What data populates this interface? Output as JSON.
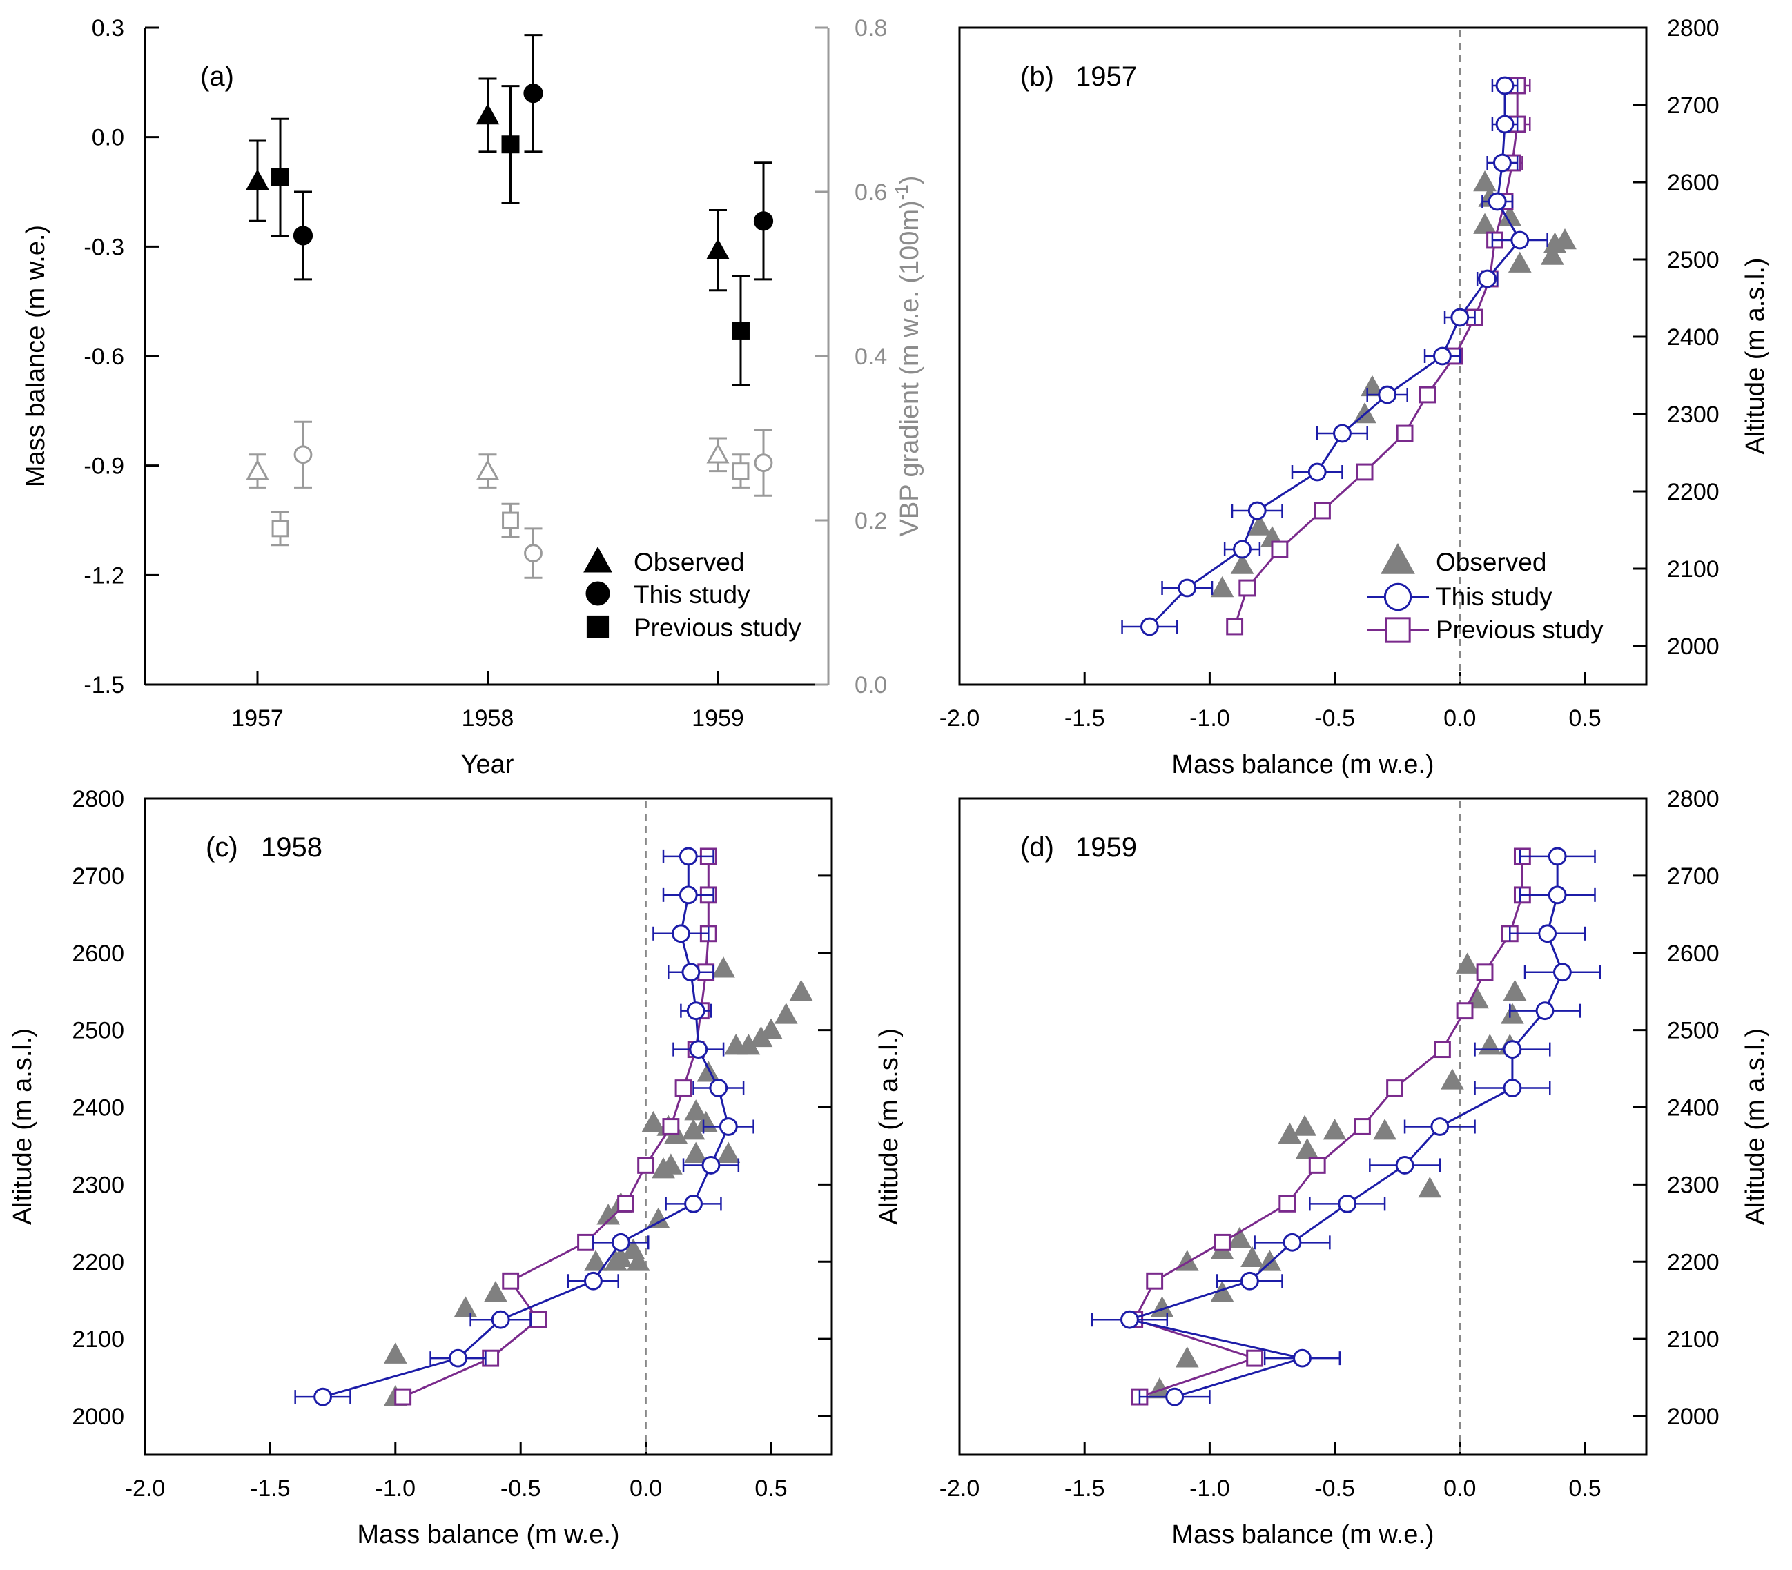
{
  "chart_data": [
    {
      "type": "scatter",
      "panel_label": "(a)",
      "xlabel": "Year",
      "ylabel": "Mass balance (m w.e.)",
      "y2label": "VBP gradient (m w.e. (100m)",
      "y2label_sup": "-1",
      "y2label_close": ")",
      "x_ticks": [
        "1957",
        "1958",
        "1959"
      ],
      "y_ticks": [
        "0.3",
        "0.0",
        "-0.3",
        "-0.6",
        "-0.9",
        "-1.2",
        "-1.5"
      ],
      "y2_ticks": [
        "0.8",
        "0.6",
        "0.4",
        "0.2",
        "0.0"
      ],
      "ylim": [
        -1.5,
        0.3
      ],
      "y2lim": [
        0.0,
        0.8
      ],
      "legend": [
        "Observed",
        "This study",
        "Previous study"
      ],
      "colors": {
        "mass_balance": "#000000",
        "gradient": "#9a9a9a"
      },
      "series": [
        {
          "name": "Observed",
          "marker": "triangle",
          "axis": "mass_balance",
          "years": [
            1957,
            1958,
            1959
          ],
          "values": [
            -0.12,
            0.06,
            -0.31
          ],
          "err": [
            0.11,
            0.1,
            0.11
          ]
        },
        {
          "name": "Previous study",
          "marker": "square",
          "axis": "mass_balance",
          "years": [
            1957,
            1958,
            1959
          ],
          "values": [
            -0.11,
            -0.02,
            -0.53
          ],
          "err": [
            0.16,
            0.16,
            0.15
          ]
        },
        {
          "name": "This study",
          "marker": "circle",
          "axis": "mass_balance",
          "years": [
            1957,
            1958,
            1959
          ],
          "values": [
            -0.27,
            0.12,
            -0.23
          ],
          "err": [
            0.12,
            0.16,
            0.16
          ]
        },
        {
          "name": "Observed gradient",
          "marker": "triangle-open",
          "axis": "gradient",
          "years": [
            1957,
            1958,
            1959
          ],
          "values": [
            0.26,
            0.26,
            0.28
          ],
          "err": [
            0.02,
            0.02,
            0.02
          ]
        },
        {
          "name": "Previous study gradient",
          "marker": "square-open",
          "axis": "gradient",
          "years": [
            1957,
            1958,
            1959
          ],
          "values": [
            0.19,
            0.2,
            0.26
          ],
          "err": [
            0.02,
            0.02,
            0.02
          ]
        },
        {
          "name": "This study gradient",
          "marker": "circle-open",
          "axis": "gradient",
          "years": [
            1957,
            1958,
            1959
          ],
          "values": [
            0.28,
            0.16,
            0.27
          ],
          "err": [
            0.04,
            0.03,
            0.04
          ]
        }
      ]
    },
    {
      "type": "line",
      "panel_label": "(b)",
      "year_label": "1957",
      "xlabel": "Mass balance (m w.e.)",
      "ylabel": "Altitude (m a.s.l.)",
      "ylabel_side": "right",
      "xlim": [
        -2.0,
        0.75
      ],
      "ylim": [
        1950,
        2800
      ],
      "x_ticks": [
        "-2.0",
        "-1.5",
        "-1.0",
        "-0.5",
        "0.0",
        "0.5"
      ],
      "y_ticks": [
        "2000",
        "2100",
        "2200",
        "2300",
        "2400",
        "2500",
        "2600",
        "2700",
        "2800"
      ],
      "legend": [
        "Observed",
        "This study",
        "Previous study"
      ],
      "colors": {
        "observed": "#808080",
        "this_study": "#1c1ca8",
        "previous_study": "#7a2a8c"
      },
      "observed": {
        "x": [
          0.1,
          0.12,
          0.2,
          0.1,
          0.24,
          0.37,
          0.42,
          0.38,
          -0.35,
          -0.38,
          -0.8,
          -0.75,
          -0.87,
          -0.95
        ],
        "y": [
          2600,
          2580,
          2555,
          2545,
          2495,
          2505,
          2525,
          2520,
          2335,
          2300,
          2155,
          2140,
          2105,
          2075
        ]
      },
      "this_study": {
        "x": [
          0.18,
          0.18,
          0.17,
          0.15,
          0.24,
          0.11,
          0.0,
          -0.07,
          -0.29,
          -0.47,
          -0.57,
          -0.81,
          -0.87,
          -1.09,
          -1.24
        ],
        "y": [
          2725,
          2675,
          2625,
          2575,
          2525,
          2475,
          2425,
          2375,
          2325,
          2275,
          2225,
          2175,
          2125,
          2075,
          2025
        ],
        "err": [
          0.05,
          0.05,
          0.06,
          0.06,
          0.11,
          0.04,
          0.06,
          0.07,
          0.08,
          0.1,
          0.1,
          0.1,
          0.07,
          0.1,
          0.11
        ]
      },
      "previous_study": {
        "x": [
          0.23,
          0.23,
          0.21,
          0.18,
          0.14,
          0.12,
          0.06,
          -0.02,
          -0.13,
          -0.22,
          -0.38,
          -0.55,
          -0.72,
          -0.85,
          -0.9
        ],
        "y": [
          2725,
          2675,
          2625,
          2575,
          2525,
          2475,
          2425,
          2375,
          2325,
          2275,
          2225,
          2175,
          2125,
          2075,
          2025
        ],
        "err": [
          0.05,
          0.05,
          0.04,
          0.03,
          0.02,
          0.02,
          0.02,
          0.02,
          0,
          0,
          0,
          0,
          0,
          0,
          0
        ]
      }
    },
    {
      "type": "line",
      "panel_label": "(c)",
      "year_label": "1958",
      "xlabel": "Mass balance (m w.e.)",
      "ylabel": "Altitude (m a.s.l.)",
      "ylabel_side": "left",
      "xlim": [
        -2.0,
        0.75
      ],
      "ylim": [
        1950,
        2800
      ],
      "x_ticks": [
        "-2.0",
        "-1.5",
        "-1.0",
        "-0.5",
        "0.0",
        "0.5"
      ],
      "y_ticks": [
        "2000",
        "2100",
        "2200",
        "2300",
        "2400",
        "2500",
        "2600",
        "2700",
        "2800"
      ],
      "colors": {
        "observed": "#808080",
        "this_study": "#1c1ca8",
        "previous_study": "#7a2a8c"
      },
      "observed": {
        "x": [
          0.31,
          0.62,
          0.56,
          0.5,
          0.46,
          0.41,
          0.36,
          0.25,
          0.03,
          0.09,
          0.2,
          0.24,
          0.19,
          0.12,
          0.33,
          0.2,
          0.07,
          0.1,
          -0.15,
          -0.1,
          0.05,
          -0.05,
          -0.12,
          -0.2,
          -0.03,
          -0.1,
          -0.6,
          -0.72,
          -1.0,
          -1.0
        ],
        "y": [
          2580,
          2550,
          2520,
          2500,
          2490,
          2480,
          2480,
          2445,
          2380,
          2375,
          2395,
          2380,
          2370,
          2365,
          2340,
          2340,
          2320,
          2325,
          2260,
          2275,
          2255,
          2215,
          2200,
          2200,
          2200,
          2205,
          2160,
          2140,
          2080,
          2025
        ]
      },
      "this_study": {
        "x": [
          0.17,
          0.17,
          0.14,
          0.18,
          0.2,
          0.21,
          0.29,
          0.33,
          0.26,
          0.19,
          -0.1,
          -0.21,
          -0.58,
          -0.75,
          -1.29
        ],
        "y": [
          2725,
          2675,
          2625,
          2575,
          2525,
          2475,
          2425,
          2375,
          2325,
          2275,
          2225,
          2175,
          2125,
          2075,
          2025
        ],
        "err": [
          0.1,
          0.1,
          0.11,
          0.09,
          0.06,
          0.1,
          0.1,
          0.1,
          0.11,
          0.11,
          0.11,
          0.1,
          0.12,
          0.11,
          0.11
        ]
      },
      "previous_study": {
        "x": [
          0.25,
          0.25,
          0.25,
          0.24,
          0.22,
          0.2,
          0.15,
          0.1,
          0.0,
          -0.08,
          -0.24,
          -0.54,
          -0.43,
          -0.62,
          -0.97
        ],
        "y": [
          2725,
          2675,
          2625,
          2575,
          2525,
          2475,
          2425,
          2375,
          2325,
          2275,
          2225,
          2175,
          2125,
          2075,
          2025
        ],
        "err": [
          0.02,
          0.02,
          0.02,
          0.02,
          0.02,
          0.02,
          0,
          0,
          0,
          0,
          0,
          0,
          0,
          0,
          0
        ]
      }
    },
    {
      "type": "line",
      "panel_label": "(d)",
      "year_label": "1959",
      "xlabel": "Mass balance (m w.e.)",
      "ylabel": "Altitude (m a.s.l.)",
      "ylabel_side": "both",
      "xlim": [
        -2.0,
        0.75
      ],
      "ylim": [
        1950,
        2800
      ],
      "x_ticks": [
        "-2.0",
        "-1.5",
        "-1.0",
        "-0.5",
        "0.0",
        "0.5"
      ],
      "y_ticks": [
        "2000",
        "2100",
        "2200",
        "2300",
        "2400",
        "2500",
        "2600",
        "2700",
        "2800"
      ],
      "colors": {
        "observed": "#808080",
        "this_study": "#1c1ca8",
        "previous_study": "#7a2a8c"
      },
      "observed": {
        "x": [
          0.03,
          0.22,
          0.07,
          0.21,
          0.12,
          0.2,
          -0.03,
          -0.68,
          -0.62,
          -0.5,
          -0.61,
          -0.3,
          -0.12,
          -0.88,
          -0.95,
          -0.83,
          -0.76,
          -1.09,
          -0.95,
          -1.19,
          -1.09,
          -1.2
        ],
        "y": [
          2585,
          2550,
          2540,
          2520,
          2480,
          2480,
          2435,
          2365,
          2375,
          2370,
          2345,
          2370,
          2295,
          2230,
          2215,
          2205,
          2200,
          2200,
          2160,
          2140,
          2075,
          2035
        ]
      },
      "this_study": {
        "x": [
          0.39,
          0.39,
          0.35,
          0.41,
          0.34,
          0.21,
          0.21,
          -0.08,
          -0.22,
          -0.45,
          -0.67,
          -0.84,
          -1.32,
          -0.63,
          -1.14
        ],
        "y": [
          2725,
          2675,
          2625,
          2575,
          2525,
          2475,
          2425,
          2375,
          2325,
          2275,
          2225,
          2175,
          2125,
          2075,
          2025
        ],
        "err": [
          0.15,
          0.15,
          0.15,
          0.15,
          0.14,
          0.15,
          0.15,
          0.14,
          0.14,
          0.15,
          0.15,
          0.13,
          0.15,
          0.15,
          0.14
        ]
      },
      "previous_study": {
        "x": [
          0.25,
          0.25,
          0.2,
          0.1,
          0.02,
          -0.07,
          -0.26,
          -0.39,
          -0.57,
          -0.69,
          -0.95,
          -1.22,
          -1.3,
          -0.82,
          -1.28
        ],
        "y": [
          2725,
          2675,
          2625,
          2575,
          2525,
          2475,
          2425,
          2375,
          2325,
          2275,
          2225,
          2175,
          2125,
          2075,
          2025
        ],
        "err": [
          0.02,
          0.02,
          0,
          0,
          0,
          0,
          0,
          0,
          0,
          0,
          0,
          0,
          0.02,
          0.02,
          0.02
        ]
      }
    }
  ]
}
